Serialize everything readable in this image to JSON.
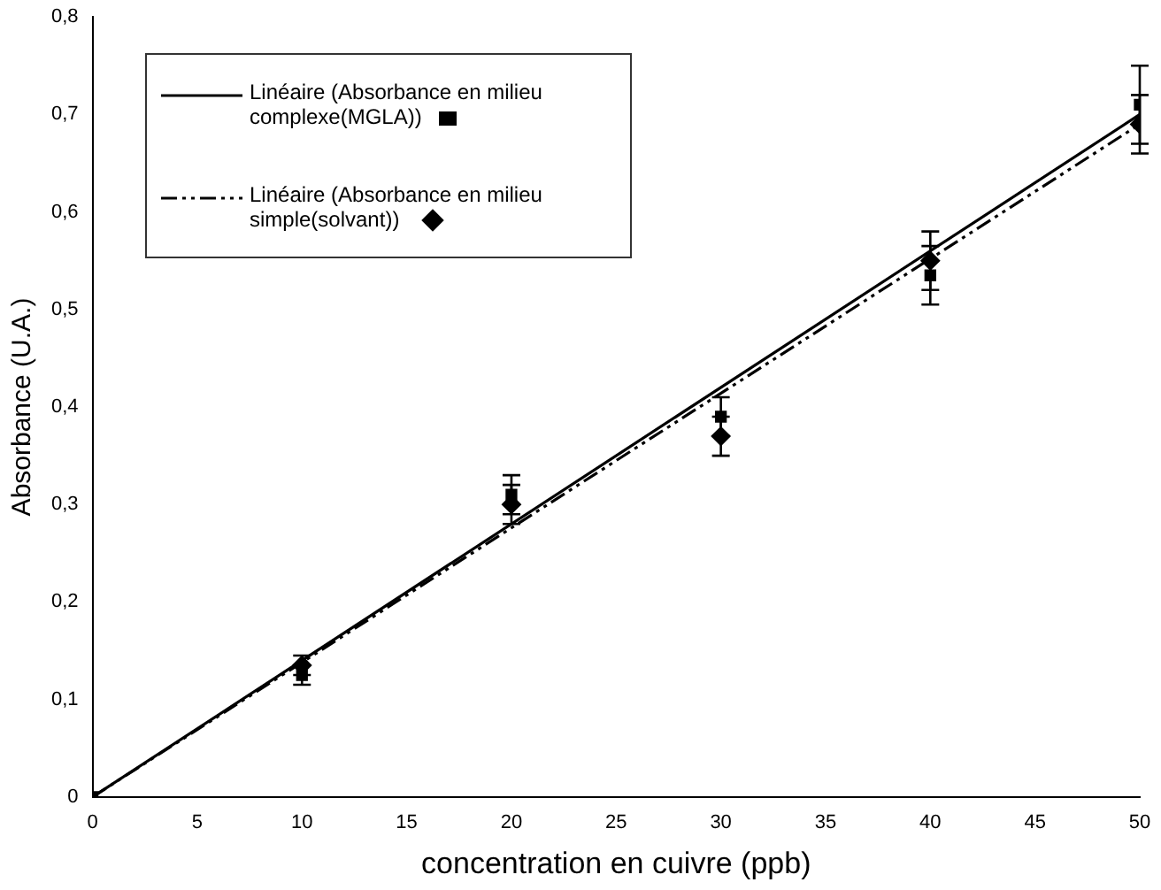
{
  "chart_data": {
    "type": "scatter",
    "xlabel": "concentration en cuivre (ppb)",
    "ylabel": "Absorbance (U.A.)",
    "xlim": [
      0,
      50
    ],
    "xticks": [
      0,
      5,
      10,
      15,
      20,
      25,
      30,
      35,
      40,
      45,
      50
    ],
    "ylim": [
      0,
      0.8
    ],
    "yticks": [
      0,
      {
        "value": 0.1,
        "label": "0,1"
      },
      {
        "value": 0.2,
        "label": "0,2"
      },
      {
        "value": 0.3,
        "label": "0,3"
      },
      {
        "value": 0.4,
        "label": "0,4"
      },
      {
        "value": 0.5,
        "label": "0,5"
      },
      {
        "value": 0.6,
        "label": "0,6"
      },
      {
        "value": 0.7,
        "label": "0,7"
      },
      {
        "value": 0.8,
        "label": "0,8"
      }
    ],
    "grid": false,
    "legend": "top left",
    "series": [
      {
        "type": "scatter",
        "marker": "square",
        "color": "#000000",
        "x": [
          0,
          10,
          20,
          30,
          40,
          50
        ],
        "values": [
          0,
          0.125,
          0.31,
          0.39,
          0.535,
          0.71
        ],
        "errors": [
          null,
          0.01,
          0.02,
          0.02,
          0.03,
          0.04
        ]
      },
      {
        "type": "scatter",
        "marker": "diamond",
        "color": "#000000",
        "x": [
          10,
          20,
          30,
          40,
          50
        ],
        "values": [
          0.135,
          0.3,
          0.37,
          0.55,
          0.69
        ],
        "errors": [
          0.01,
          0.02,
          0.02,
          0.03,
          0.03
        ]
      },
      {
        "type": "line",
        "name": "Linéaire (Absorbance en milieu complexe(MGLA))",
        "marker": "none",
        "line_style": "solid",
        "color": "#000000",
        "x": [
          0,
          50
        ],
        "values": [
          0,
          0.7
        ]
      },
      {
        "type": "line",
        "name": "Linéaire (Absorbance en milieu simple(solvant))",
        "marker": "none",
        "line_style": "dashed",
        "color": "#000000",
        "x": [
          0,
          50
        ],
        "values": [
          0,
          0.69
        ]
      }
    ]
  }
}
